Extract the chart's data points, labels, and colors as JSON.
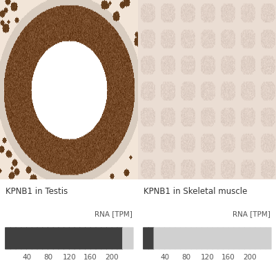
{
  "title_left": "KPNB1 in Testis",
  "title_right": "KPNB1 in Skeletal muscle",
  "rna_label": "RNA [TPM]",
  "tpm_ticks": [
    40,
    80,
    120,
    160,
    200
  ],
  "total_segments": 24,
  "testis_filled": 22,
  "skeletal_filled": 2,
  "dark_color": "#404040",
  "light_color": "#d0d0d0",
  "bg_color": "#ffffff",
  "title_fontsize": 8.5,
  "tick_fontsize": 7.5,
  "rna_label_fontsize": 7.5,
  "fig_width": 4.0,
  "fig_height": 4.0,
  "dpi": 100
}
